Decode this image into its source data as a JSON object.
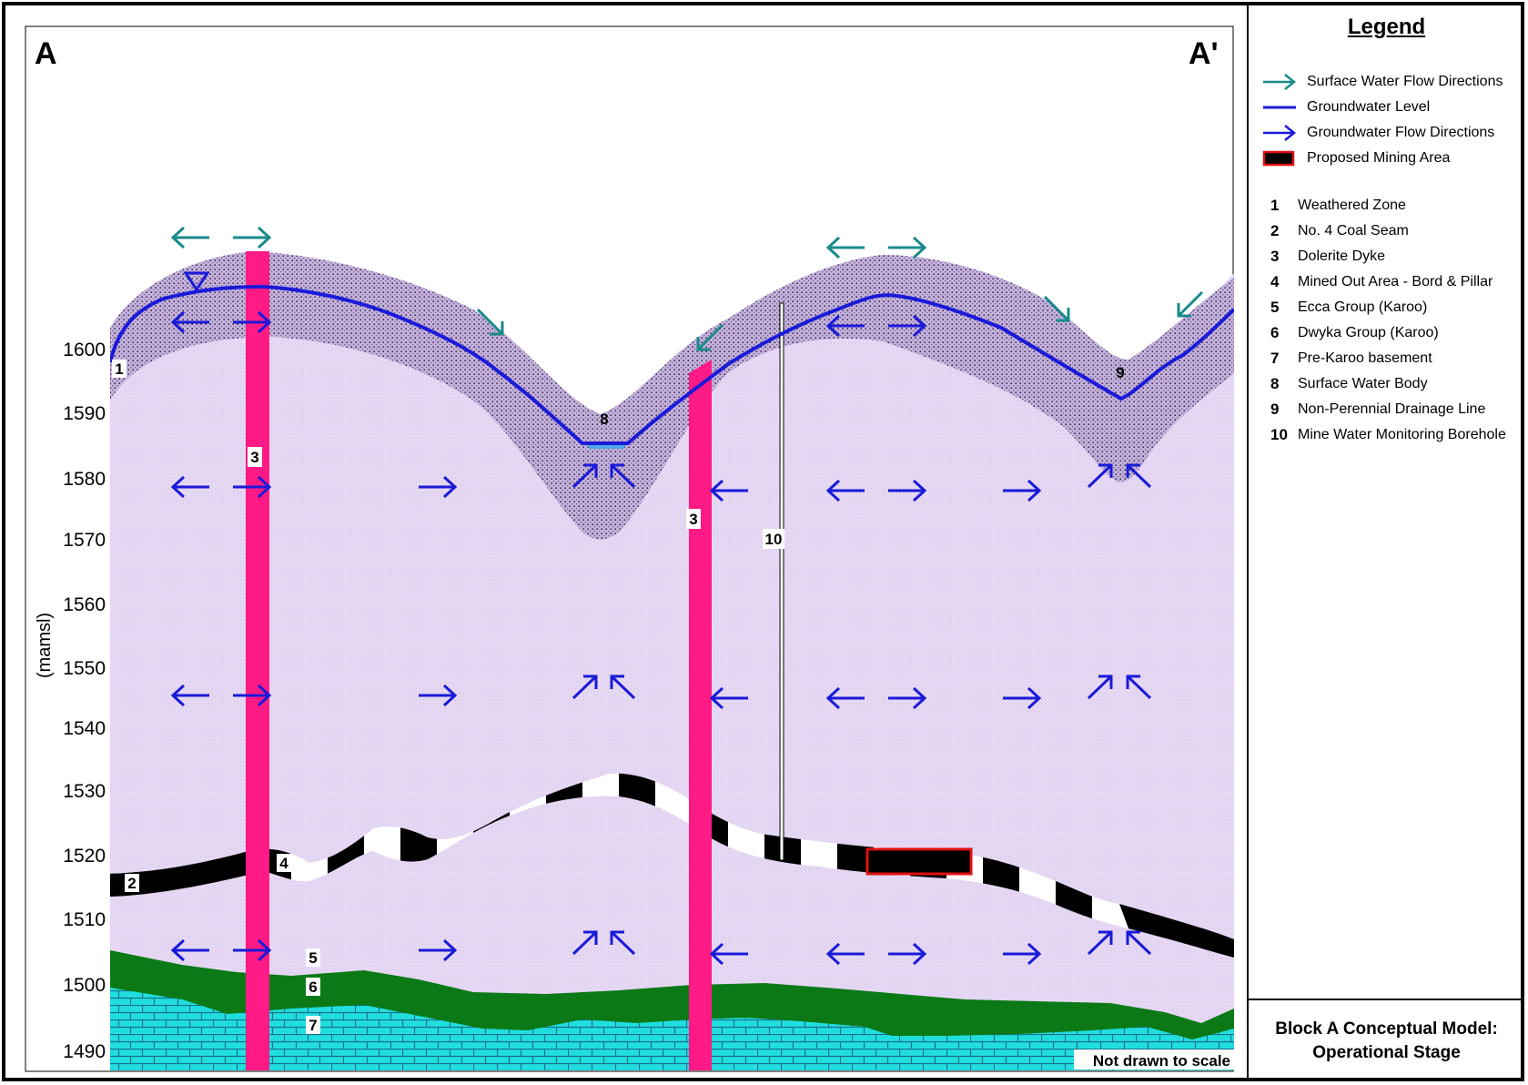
{
  "section": {
    "start_label": "A",
    "end_label": "A'"
  },
  "axis": {
    "label": "(mamsl)",
    "ticks": [
      "1600",
      "1590",
      "1580",
      "1570",
      "1560",
      "1550",
      "1540",
      "1530",
      "1520",
      "1510",
      "1500",
      "1490"
    ],
    "range": [
      1487,
      1636
    ]
  },
  "note": "Not drawn to scale",
  "legend": {
    "title": "Legend",
    "symbols": [
      {
        "label": "Surface Water Flow Directions",
        "icon": "teal-arrow-icon"
      },
      {
        "label": "Groundwater Level",
        "icon": "blue-line-icon"
      },
      {
        "label": "Groundwater Flow Directions",
        "icon": "blue-arrow-icon"
      },
      {
        "label": "Proposed Mining Area",
        "icon": "mining-area-icon"
      }
    ],
    "numbered": [
      {
        "num": "1",
        "label": "Weathered Zone"
      },
      {
        "num": "2",
        "label": "No. 4 Coal Seam"
      },
      {
        "num": "3",
        "label": "Dolerite Dyke"
      },
      {
        "num": "4",
        "label": "Mined Out Area - Bord & Pillar"
      },
      {
        "num": "5",
        "label": "Ecca Group (Karoo)"
      },
      {
        "num": "6",
        "label": "Dwyka Group (Karoo)"
      },
      {
        "num": "7",
        "label": "Pre-Karoo basement"
      },
      {
        "num": "8",
        "label": "Surface Water Body"
      },
      {
        "num": "9",
        "label": "Non-Perennial Drainage Line"
      },
      {
        "num": "10",
        "label": "Mine Water Monitoring Borehole"
      }
    ]
  },
  "labels": {
    "weathered": "1",
    "coal_seam": "2",
    "dyke_left": "3",
    "dyke_right": "3",
    "mined_out": "4",
    "ecca": "5",
    "dwyka": "6",
    "basement": "7",
    "water_body": "8",
    "drainage": "9",
    "borehole": "10"
  },
  "title": {
    "line1": "Block A Conceptual Model:",
    "line2": "Operational Stage"
  },
  "colors": {
    "surface_arrow": "#1a8a8a",
    "groundwater": "#1a1ad8",
    "dyke": "#ff1a85",
    "ecca": "#eadcf6",
    "weathered": "#bfaed6",
    "dwyka": "#0a7a14",
    "basement": "#1fdcdc",
    "mining_outline": "#e01010"
  }
}
